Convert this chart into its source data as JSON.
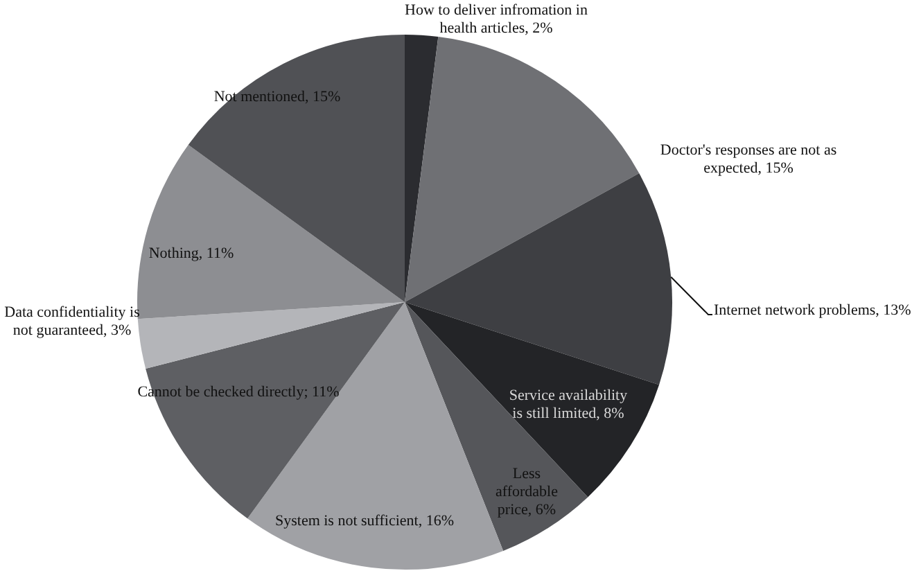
{
  "chart_data": {
    "type": "pie",
    "categories": [
      "How to deliver infromation in health articles",
      "Doctor's responses are not as expected",
      "Internet network problems",
      "Service availability is still limited",
      "Less affordable price",
      "System is not sufficient",
      "Cannot be checked directly",
      "Data confidentiality is not guaranteed",
      "Nothing",
      "Not mentioned"
    ],
    "values": [
      2,
      15,
      13,
      8,
      6,
      16,
      11,
      3,
      11,
      15
    ],
    "colors": [
      "#2b2c30",
      "#6f7074",
      "#3e3f43",
      "#232427",
      "#55565a",
      "#a0a1a5",
      "#5e5f63",
      "#b4b5b9",
      "#8d8e92",
      "#505155"
    ],
    "value_labels": [
      "2%",
      "15%",
      "13%",
      "8%",
      "6%",
      "16%",
      "11%",
      "3%",
      "11%",
      "15%"
    ],
    "legend": false
  }
}
